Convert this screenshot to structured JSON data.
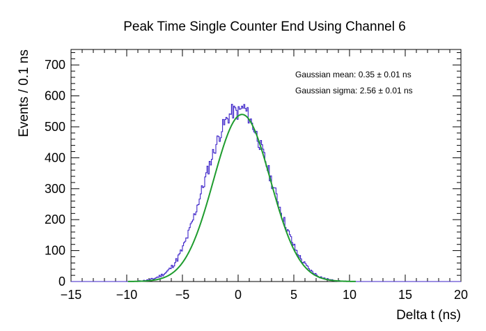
{
  "chart_data": {
    "type": "histogram",
    "title": "Peak Time Single Counter End Using Channel 6",
    "xlabel": "Delta t (ns)",
    "ylabel": "Events / 0.1 ns",
    "xlim": [
      -15,
      20
    ],
    "ylim": [
      0,
      750
    ],
    "bin_width": 0.1,
    "xticks": [
      -15,
      -10,
      -5,
      0,
      5,
      10,
      15,
      20
    ],
    "yticks": [
      0,
      100,
      200,
      300,
      400,
      500,
      600,
      700
    ],
    "grid": false,
    "series": [
      {
        "color": "#3b22c8",
        "x": [
          -9.0,
          -8.5,
          -8.0,
          -7.5,
          -7.0,
          -6.5,
          -6.0,
          -5.5,
          -5.0,
          -4.5,
          -4.0,
          -3.5,
          -3.0,
          -2.5,
          -2.0,
          -1.5,
          -1.0,
          -0.5,
          0.0,
          0.5,
          1.0,
          1.5,
          2.0,
          2.5,
          3.0,
          3.5,
          4.0,
          4.5,
          5.0,
          5.5,
          6.0,
          6.5,
          7.0,
          7.5,
          8.0,
          8.5,
          9.0,
          9.5,
          10.0
        ],
        "values": [
          1,
          3,
          5,
          10,
          18,
          28,
          45,
          70,
          105,
          150,
          205,
          265,
          325,
          385,
          440,
          490,
          525,
          550,
          545,
          565,
          530,
          490,
          440,
          385,
          325,
          270,
          210,
          160,
          115,
          80,
          55,
          35,
          22,
          13,
          7,
          4,
          2,
          1,
          0
        ]
      }
    ],
    "fit": {
      "name": "Gaussian fit",
      "color": "#1e9c2e",
      "mean": 0.35,
      "sigma": 2.56,
      "amplitude": 540
    },
    "annotations": [
      "Gaussian mean: 0.35 ± 0.01 ns",
      "Gaussian sigma: 2.56 ± 0.01 ns"
    ]
  }
}
